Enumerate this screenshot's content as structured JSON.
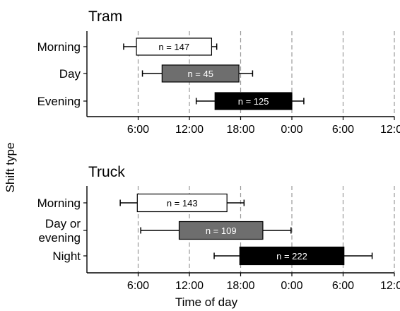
{
  "chart_data": {
    "type": "bar",
    "xlabel": "Time of day",
    "ylabel": "Shift type",
    "x_ticks": [
      "6:00",
      "12:00",
      "18:00",
      "0:00",
      "6:00",
      "12:00"
    ],
    "x_tick_hours": [
      6,
      12,
      18,
      24,
      30,
      36
    ],
    "xlim_hours": [
      0,
      36
    ],
    "grid": "vertical dashed at ticks",
    "panels": [
      {
        "title": "Tram",
        "rows": [
          {
            "category": [
              "Morning"
            ],
            "start": 5.8,
            "end": 14.6,
            "whisker_low": 4.3,
            "whisker_high": 15.2,
            "label": "n = 147",
            "fill": "#ffffff",
            "text_color": "#000000"
          },
          {
            "category": [
              "Day"
            ],
            "start": 8.8,
            "end": 17.8,
            "whisker_low": 6.5,
            "whisker_high": 19.4,
            "label": "n = 45",
            "fill": "#6e6e6e",
            "text_color": "#ffffff"
          },
          {
            "category": [
              "Evening"
            ],
            "start": 15.0,
            "end": 24.0,
            "whisker_low": 12.8,
            "whisker_high": 25.4,
            "label": "n = 125",
            "fill": "#000000",
            "text_color": "#ffffff"
          }
        ]
      },
      {
        "title": "Truck",
        "rows": [
          {
            "category": [
              "Morning"
            ],
            "start": 5.9,
            "end": 16.4,
            "whisker_low": 3.9,
            "whisker_high": 18.4,
            "label": "n = 143",
            "fill": "#ffffff",
            "text_color": "#000000"
          },
          {
            "category": [
              "Day or",
              "evening"
            ],
            "start": 10.8,
            "end": 20.6,
            "whisker_low": 6.3,
            "whisker_high": 23.9,
            "label": "n = 109",
            "fill": "#6e6e6e",
            "text_color": "#ffffff"
          },
          {
            "category": [
              "Night"
            ],
            "start": 17.9,
            "end": 30.1,
            "whisker_low": 14.9,
            "whisker_high": 33.4,
            "label": "n = 222",
            "fill": "#000000",
            "text_color": "#ffffff"
          }
        ]
      }
    ]
  }
}
